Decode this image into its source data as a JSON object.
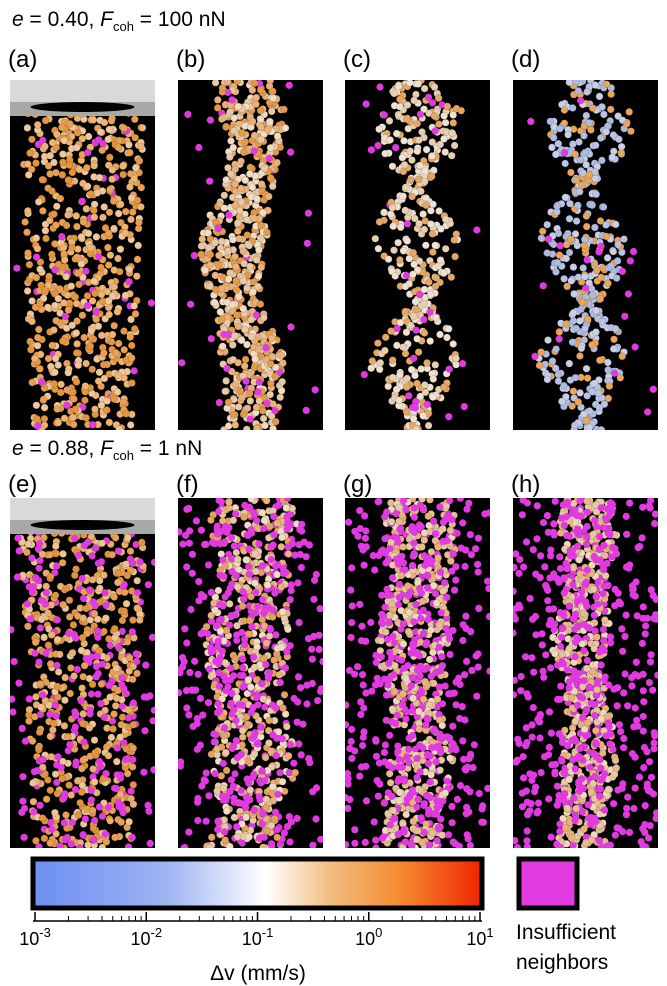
{
  "rows": [
    {
      "var1": "e",
      "val1": " = 0.40, ",
      "var2": "F",
      "sub2": "coh",
      "val2": " = 100 nN",
      "panels": [
        "(a)",
        "(b)",
        "(c)",
        "(d)"
      ]
    },
    {
      "var1": "e",
      "val1": " = 0.88, ",
      "var2": "F",
      "sub2": "coh",
      "val2": " = 1 nN",
      "panels": [
        "(e)",
        "(f)",
        "(g)",
        "(h)"
      ]
    }
  ],
  "colorbar": {
    "scale": "log",
    "lim": [
      0.001,
      10
    ],
    "ticks": [
      {
        "value": 0.001,
        "label": "10",
        "exponent": "-3"
      },
      {
        "value": 0.01,
        "label": "10",
        "exponent": "-2"
      },
      {
        "value": 0.1,
        "label": "10",
        "exponent": "-1"
      },
      {
        "value": 1,
        "label": "10",
        "exponent": "0"
      },
      {
        "value": 10,
        "label": "10",
        "exponent": "1"
      }
    ],
    "label": "Δv (mm/s)"
  },
  "legend": {
    "label_line1": "Insufficient",
    "label_line2": "neighbors",
    "color": "#e03ae0"
  }
}
